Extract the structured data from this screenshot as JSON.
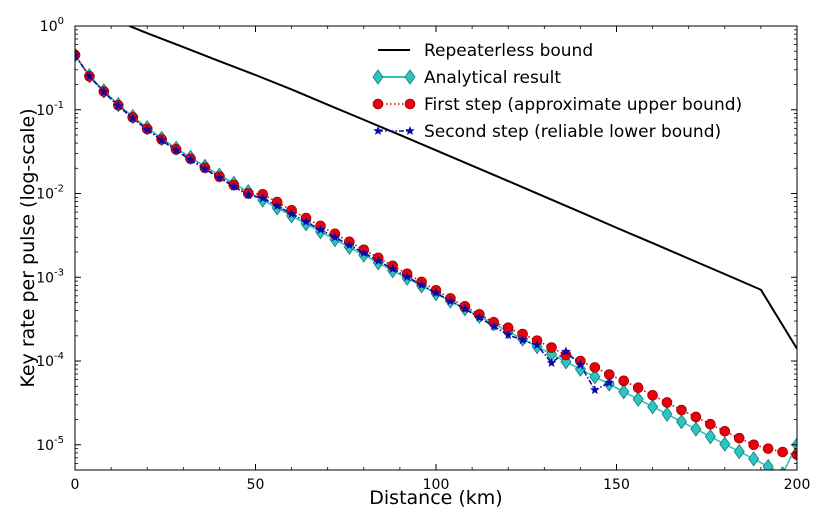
{
  "chart_data": {
    "type": "line",
    "title": "",
    "xlabel": "Distance (km)",
    "ylabel": "Key rate per pulse (log-scale)",
    "xlim": [
      0,
      200
    ],
    "ylim": [
      5e-06,
      1
    ],
    "yscale": "log",
    "grid": false,
    "legend_position": "top-right",
    "x_ticks": [
      0,
      50,
      100,
      150,
      200
    ],
    "y_ticks": [
      {
        "value": 1,
        "base": "10",
        "exp": "0"
      },
      {
        "value": 0.1,
        "base": "10",
        "exp": "-1"
      },
      {
        "value": 0.01,
        "base": "10",
        "exp": "-2"
      },
      {
        "value": 0.001,
        "base": "10",
        "exp": "-3"
      },
      {
        "value": 0.0001,
        "base": "10",
        "exp": "-4"
      },
      {
        "value": 1e-05,
        "base": "10",
        "exp": "-5"
      }
    ],
    "series": [
      {
        "name": "Repeaterless bound",
        "color": "#000000",
        "marker": "none",
        "linestyle": "solid",
        "x": [
          15,
          20,
          30,
          40,
          50,
          60,
          70,
          80,
          90,
          100,
          110,
          120,
          130,
          140,
          150,
          160,
          170,
          180,
          190,
          200
        ],
        "y": [
          1.0,
          0.82,
          0.56,
          0.38,
          0.26,
          0.175,
          0.115,
          0.076,
          0.05,
          0.0328,
          0.0215,
          0.0141,
          0.0092,
          0.006,
          0.0039,
          0.00256,
          0.00167,
          0.00109,
          0.00071,
          0.00014
        ]
      },
      {
        "name": "Analytical result",
        "color": "#2ec4c0",
        "marker": "diamond",
        "linestyle": "solid",
        "x": [
          0,
          4,
          8,
          12,
          16,
          20,
          24,
          28,
          32,
          36,
          40,
          44,
          48,
          52,
          56,
          60,
          64,
          68,
          72,
          76,
          80,
          84,
          88,
          92,
          96,
          100,
          104,
          108,
          112,
          116,
          120,
          124,
          128,
          132,
          136,
          140,
          144,
          148,
          152,
          156,
          160,
          164,
          168,
          172,
          176,
          180,
          184,
          188,
          192,
          196,
          200
        ],
        "y": [
          0.45,
          0.255,
          0.168,
          0.115,
          0.083,
          0.061,
          0.0455,
          0.0348,
          0.027,
          0.0211,
          0.0166,
          0.0132,
          0.0105,
          0.00839,
          0.00673,
          0.00541,
          0.00435,
          0.0035,
          0.00282,
          0.00228,
          0.00184,
          0.00149,
          0.0012,
          0.000975,
          0.00079,
          0.00064,
          0.00052,
          0.000422,
          0.000342,
          0.000278,
          0.000225,
          0.000183,
          0.000149,
          0.000121,
          9.8e-05,
          8e-05,
          6.5e-05,
          5.3e-05,
          4.3e-05,
          3.5e-05,
          2.85e-05,
          2.32e-05,
          1.89e-05,
          1.54e-05,
          1.25e-05,
          1.02e-05,
          8.3e-06,
          6.8e-06,
          5.5e-06,
          4.5e-06,
          1e-05
        ]
      },
      {
        "name": "First step (approximate upper bound)",
        "color": "#e8000b",
        "marker": "circle",
        "linestyle": "dotted",
        "x": [
          0,
          4,
          8,
          12,
          16,
          20,
          24,
          28,
          32,
          36,
          40,
          44,
          48,
          52,
          56,
          60,
          64,
          68,
          72,
          76,
          80,
          84,
          88,
          92,
          96,
          100,
          104,
          108,
          112,
          116,
          120,
          124,
          128,
          132,
          136,
          140,
          144,
          148,
          152,
          156,
          160,
          164,
          168,
          172,
          176,
          180,
          184,
          188,
          192,
          196,
          200
        ],
        "y": [
          0.45,
          0.25,
          0.165,
          0.113,
          0.081,
          0.059,
          0.0443,
          0.0337,
          0.026,
          0.0203,
          0.0159,
          0.0126,
          0.01,
          0.0098,
          0.0079,
          0.0063,
          0.0051,
          0.0041,
          0.0033,
          0.00265,
          0.00213,
          0.00171,
          0.00137,
          0.0011,
          0.00088,
          0.0007,
          0.00056,
          0.00045,
          0.00036,
          0.00029,
          0.00025,
          0.00021,
          0.000175,
          0.000145,
          0.000118,
          0.0001,
          8.4e-05,
          6.9e-05,
          5.8e-05,
          4.8e-05,
          3.9e-05,
          3.2e-05,
          2.6e-05,
          2.15e-05,
          1.76e-05,
          1.45e-05,
          1.2e-05,
          1e-05,
          9e-06,
          8.2e-06,
          7.6e-06
        ]
      },
      {
        "name": "Second step (reliable lower bound)",
        "color": "#0a0aa8",
        "marker": "star",
        "linestyle": "dashdot",
        "x": [
          0,
          4,
          8,
          12,
          16,
          20,
          24,
          28,
          32,
          36,
          40,
          44,
          48,
          52,
          56,
          60,
          64,
          68,
          72,
          76,
          80,
          84,
          88,
          92,
          96,
          100,
          104,
          108,
          112,
          116,
          120,
          124,
          128,
          132,
          136,
          140,
          144,
          148
        ],
        "y": [
          0.45,
          0.25,
          0.163,
          0.111,
          0.079,
          0.058,
          0.0432,
          0.0327,
          0.0252,
          0.0196,
          0.0154,
          0.0121,
          0.0096,
          0.0088,
          0.0071,
          0.0057,
          0.0046,
          0.0037,
          0.003,
          0.00242,
          0.00195,
          0.00157,
          0.00126,
          0.00101,
          0.00081,
          0.00065,
          0.00052,
          0.00042,
          0.00033,
          0.00026,
          0.000205,
          0.000178,
          0.000155,
          9.5e-05,
          0.00013,
          9e-05,
          4.5e-05,
          5.5e-05
        ]
      }
    ]
  }
}
